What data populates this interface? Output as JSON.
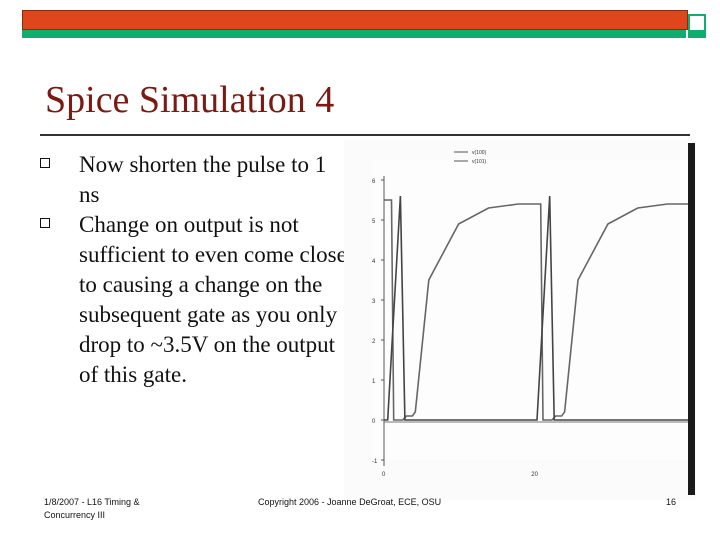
{
  "slide": {
    "title": "Spice Simulation 4",
    "bullets": [
      "Now shorten the pulse to 1 ns",
      "Change on output is not sufficient to even come close to causing a change on the subsequent gate as you only drop to ~3.5V on the output of this gate."
    ]
  },
  "footer": {
    "left": "1/8/2007 - L16 Timing & Concurrency III",
    "center": "Copyright 2006 - Joanne DeGroat, ECE, OSU",
    "page": "16"
  },
  "chart_data": {
    "type": "line",
    "legend": [
      "v(100)",
      "v(101)"
    ],
    "x_ticks": [
      "0",
      "20"
    ],
    "y_ticks": [
      "6",
      "5",
      "4",
      "3",
      "2",
      "1",
      "0",
      "-1"
    ],
    "ylim": [
      -1,
      6
    ],
    "series": [
      {
        "name": "v(100)",
        "x": [
          0,
          1,
          1.3,
          2.5,
          3,
          3.8,
          4.2,
          6,
          10,
          14,
          18,
          21,
          21.3,
          22.5,
          23,
          23.8,
          24.2,
          26,
          30,
          34,
          38,
          41
        ],
        "y": [
          5.5,
          5.5,
          0,
          0,
          0.1,
          0.1,
          0.2,
          3.5,
          4.9,
          5.3,
          5.4,
          5.4,
          0,
          0,
          0.1,
          0.1,
          0.2,
          3.5,
          4.9,
          5.3,
          5.4,
          5.4
        ]
      },
      {
        "name": "v(101)",
        "x": [
          0,
          0.5,
          2.2,
          2.8,
          6,
          20,
          20.5,
          22.2,
          22.8,
          26,
          41
        ],
        "y": [
          0,
          0,
          5.6,
          0,
          0,
          0,
          0,
          5.6,
          0,
          0,
          0
        ]
      }
    ]
  }
}
